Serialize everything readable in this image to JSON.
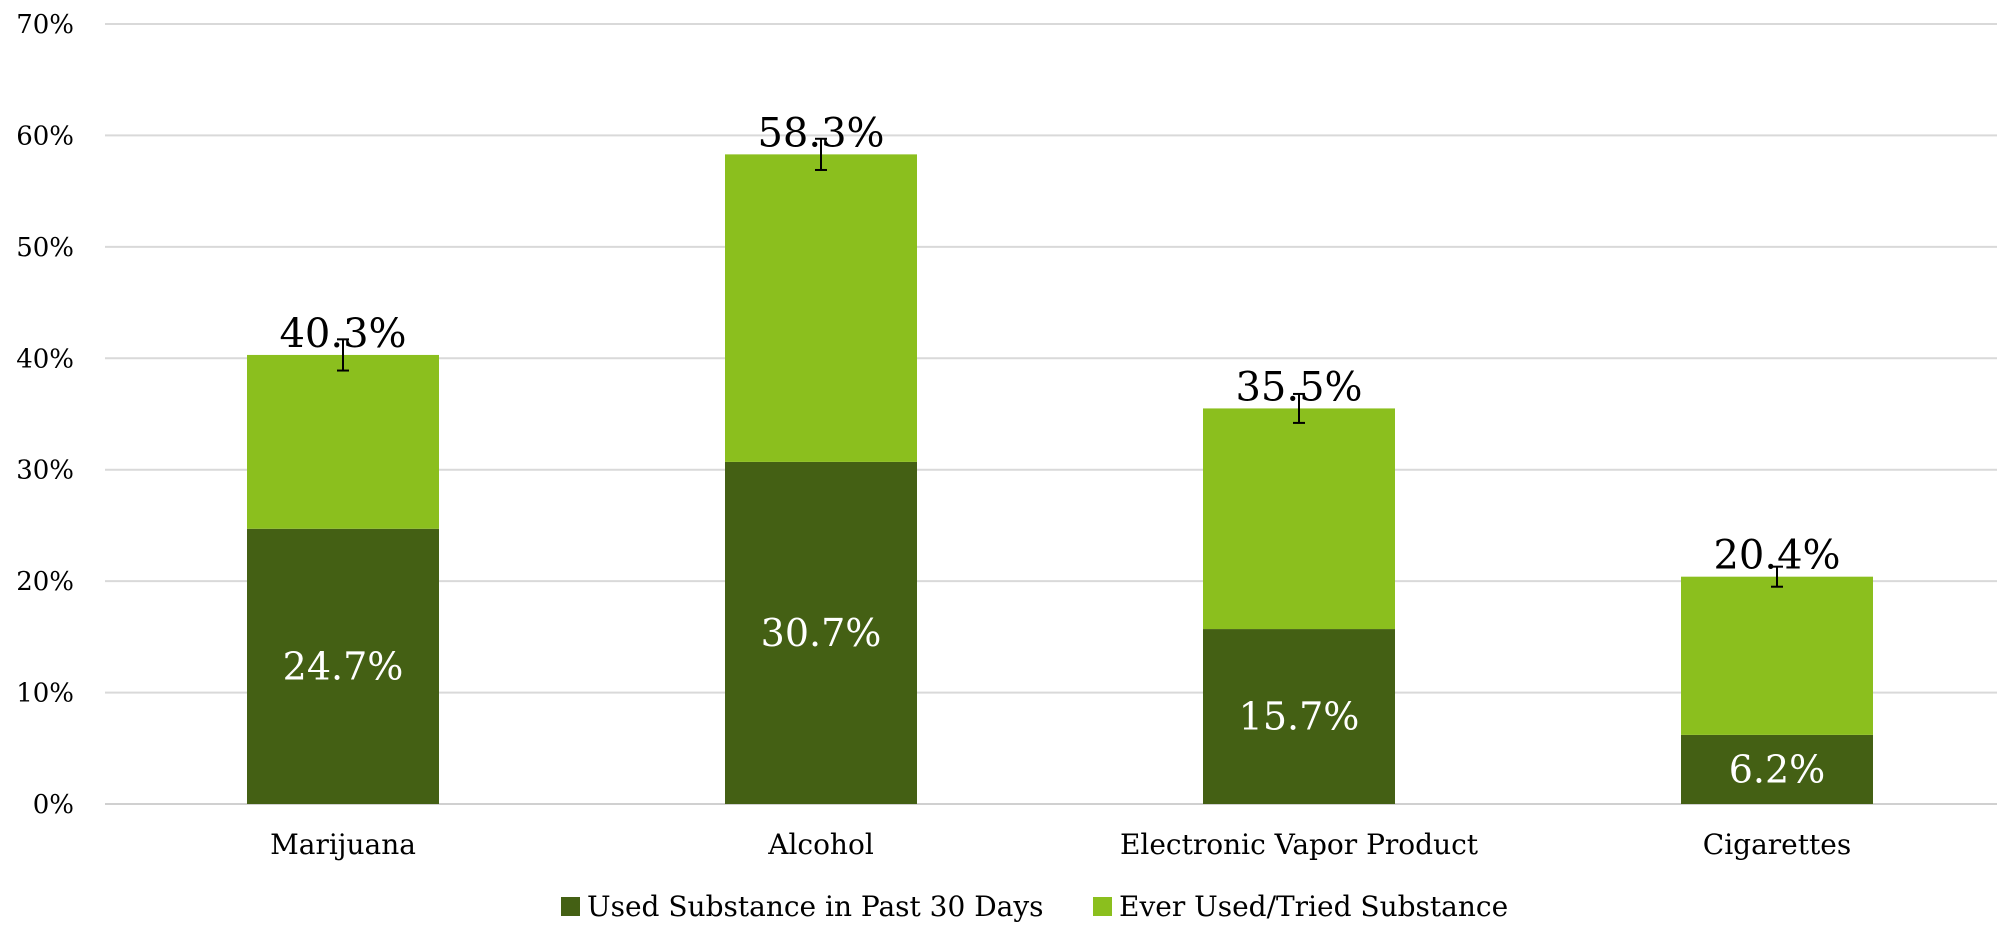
{
  "chart_data": {
    "type": "bar",
    "stacked": true,
    "categories": [
      "Marijuana",
      "Alcohol",
      "Electronic Vapor Product",
      "Cigarettes"
    ],
    "series": [
      {
        "name": "Used Substance in Past 30 Days",
        "values": [
          24.7,
          30.7,
          15.7,
          6.2
        ],
        "labels": [
          "24.7%",
          "30.7%",
          "15.7%",
          "6.2%"
        ],
        "color": "#446014"
      },
      {
        "name": "Ever Used/Tried Substance",
        "totals": [
          40.3,
          58.3,
          35.5,
          20.4
        ],
        "labels": [
          "40.3%",
          "58.3%",
          "35.5%",
          "20.4%"
        ],
        "error": [
          1.4,
          1.4,
          1.3,
          0.9
        ],
        "color": "#8bbf1e"
      }
    ],
    "ylim": [
      0,
      70
    ],
    "yticks": [
      0,
      10,
      20,
      30,
      40,
      50,
      60,
      70
    ],
    "ytick_labels": [
      "0%",
      "10%",
      "20%",
      "30%",
      "40%",
      "50%",
      "60%",
      "70%"
    ],
    "grid": true,
    "legend_position": "bottom",
    "title": "",
    "xlabel": "",
    "ylabel": ""
  }
}
